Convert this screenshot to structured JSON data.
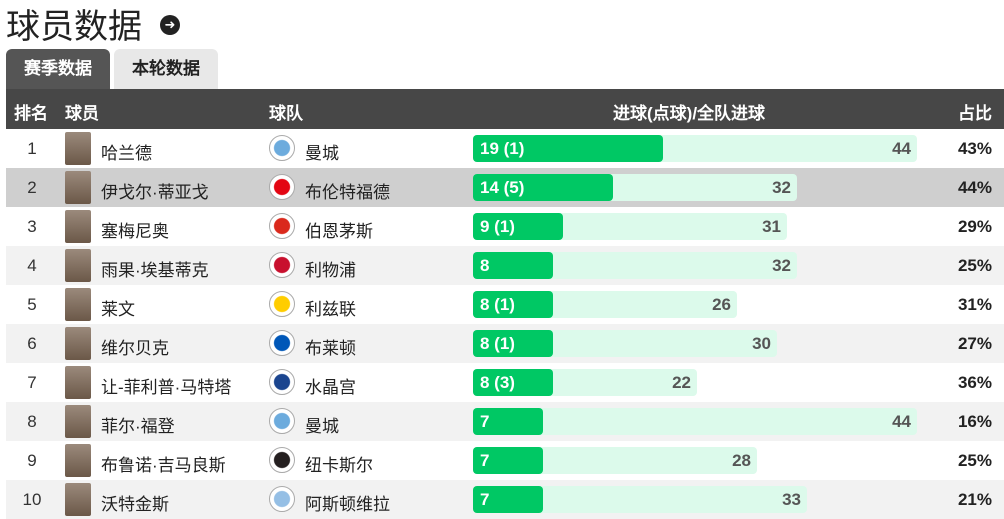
{
  "title": "球员数据",
  "tabs": [
    "赛季数据",
    "本轮数据"
  ],
  "headers": {
    "rank": "排名",
    "player": "球员",
    "team": "球队",
    "goals": "进球(点球)/全队进球",
    "pct": "占比"
  },
  "rows": [
    {
      "rank": "1",
      "player": "哈兰德",
      "team": "曼城",
      "goals": 19,
      "goals_label": "19 (1)",
      "team_total": "44",
      "pct": "43%",
      "logo": "#6cabdd"
    },
    {
      "rank": "2",
      "player": "伊戈尔·蒂亚戈",
      "team": "布伦特福德",
      "goals": 14,
      "goals_label": "14 (5)",
      "team_total": "32",
      "pct": "44%",
      "logo": "#e30613"
    },
    {
      "rank": "3",
      "player": "塞梅尼奥",
      "team": "伯恩茅斯",
      "goals": 9,
      "goals_label": "9 (1)",
      "team_total": "31",
      "pct": "29%",
      "logo": "#da291c"
    },
    {
      "rank": "4",
      "player": "雨果·埃基蒂克",
      "team": "利物浦",
      "goals": 8,
      "goals_label": "8",
      "team_total": "32",
      "pct": "25%",
      "logo": "#c8102e"
    },
    {
      "rank": "5",
      "player": "莱文",
      "team": "利兹联",
      "goals": 8,
      "goals_label": "8 (1)",
      "team_total": "26",
      "pct": "31%",
      "logo": "#ffcd00"
    },
    {
      "rank": "6",
      "player": "维尔贝克",
      "team": "布莱顿",
      "goals": 8,
      "goals_label": "8 (1)",
      "team_total": "30",
      "pct": "27%",
      "logo": "#0057b8"
    },
    {
      "rank": "7",
      "player": "让-菲利普·马特塔",
      "team": "水晶宫",
      "goals": 8,
      "goals_label": "8 (3)",
      "team_total": "22",
      "pct": "36%",
      "logo": "#1b458f"
    },
    {
      "rank": "8",
      "player": "菲尔·福登",
      "team": "曼城",
      "goals": 7,
      "goals_label": "7",
      "team_total": "44",
      "pct": "16%",
      "logo": "#6cabdd"
    },
    {
      "rank": "9",
      "player": "布鲁诺·吉马良斯",
      "team": "纽卡斯尔",
      "goals": 7,
      "goals_label": "7",
      "team_total": "28",
      "pct": "25%",
      "logo": "#241f20"
    },
    {
      "rank": "10",
      "player": "沃特金斯",
      "team": "阿斯顿维拉",
      "goals": 7,
      "goals_label": "7",
      "team_total": "33",
      "pct": "21%",
      "logo": "#95bfe5"
    }
  ]
}
